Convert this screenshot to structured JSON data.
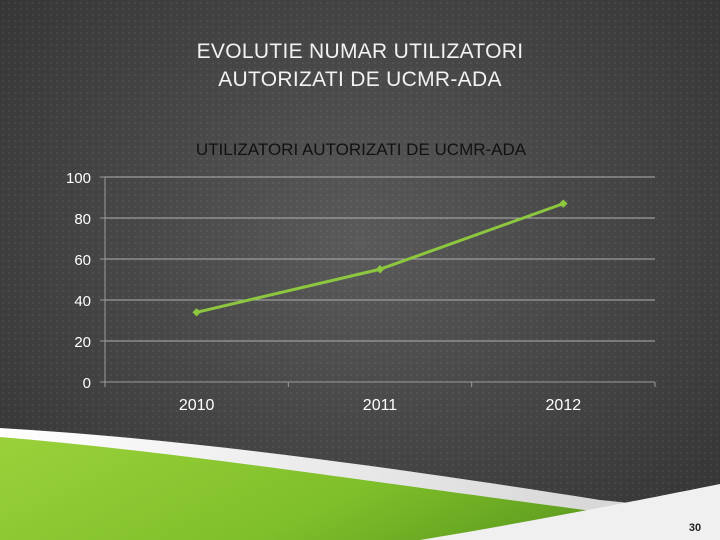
{
  "slide": {
    "title_line1": "EVOLUTIE NUMAR UTILIZATORI",
    "title_line2": "AUTORIZATI DE UCMR-ADA",
    "page_number": "30"
  },
  "colors": {
    "series": "#8dc63f",
    "axis": "#9a9a9a",
    "grid": "#b0b0b0",
    "text": "#ffffff",
    "chart_title": "#111111"
  },
  "chart_data": {
    "type": "line",
    "title": "UTILIZATORI AUTORIZATI DE UCMR-ADA",
    "categories": [
      "2010",
      "2011",
      "2012"
    ],
    "series": [
      {
        "values": [
          34,
          55,
          87
        ]
      }
    ],
    "yticks": [
      "0",
      "20",
      "40",
      "60",
      "80",
      "100"
    ],
    "ylim": [
      0,
      100
    ],
    "grid": true,
    "legend": "none",
    "marker": "diamond"
  }
}
